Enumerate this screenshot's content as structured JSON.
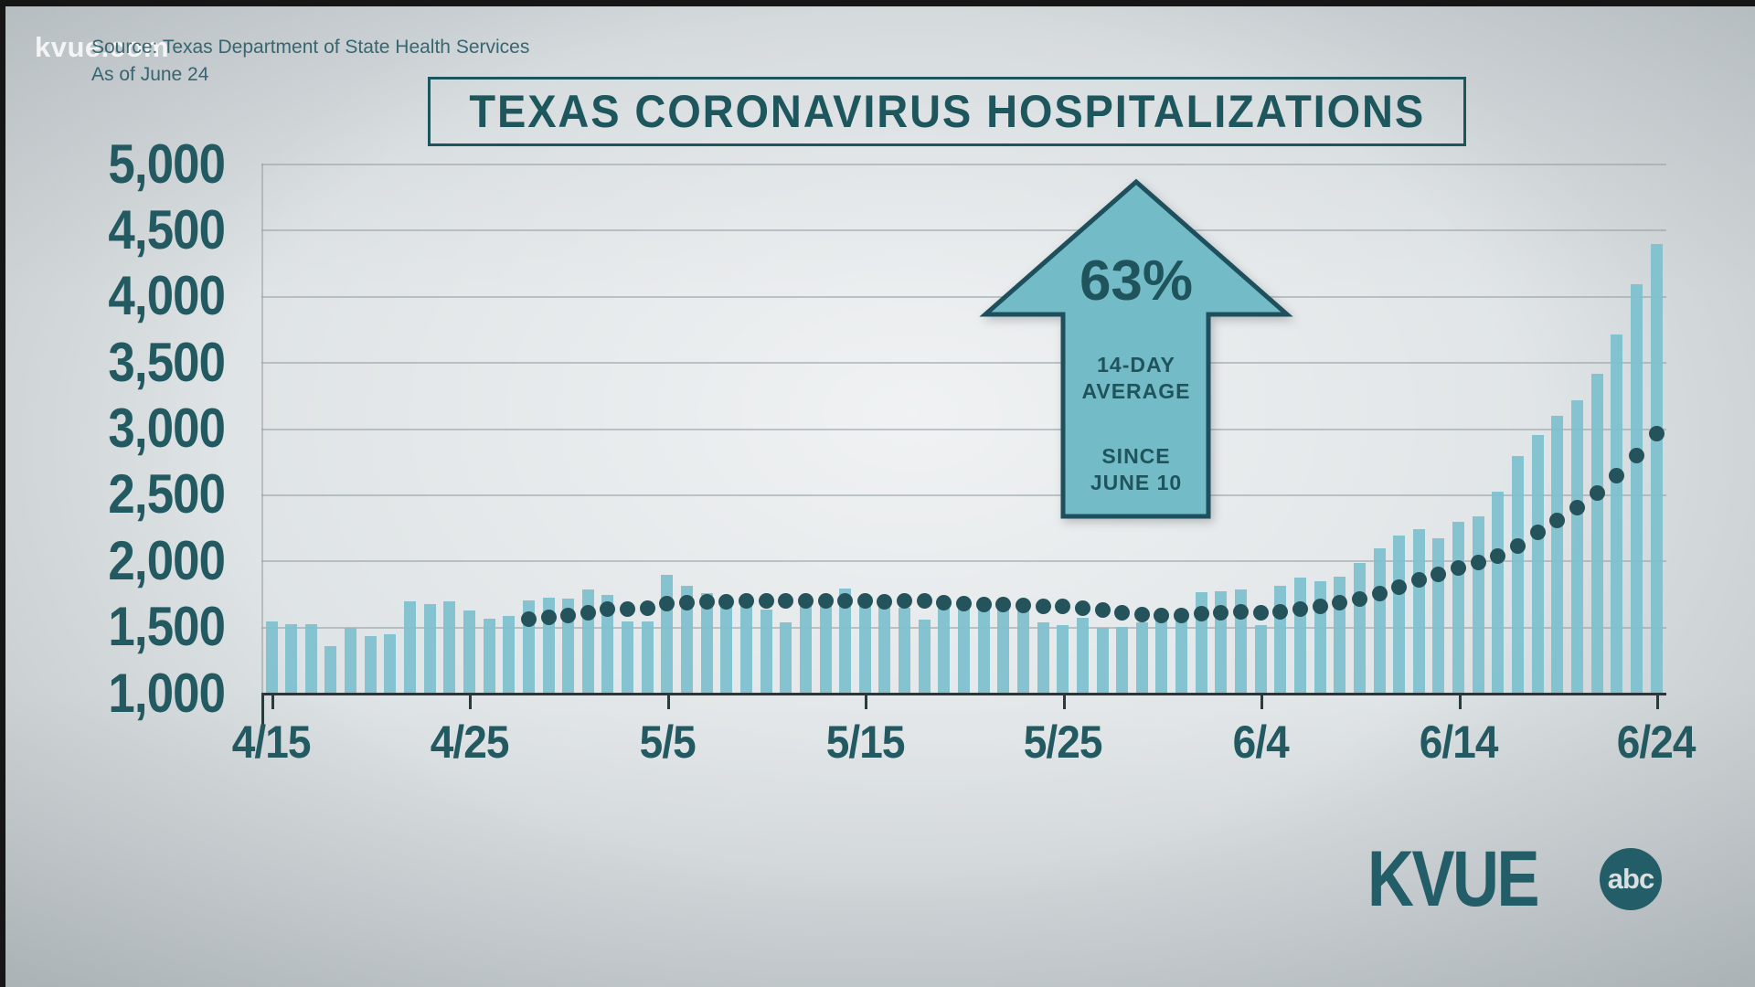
{
  "watermark": "kvue.com",
  "source": {
    "line1": "Source: Texas Department of State Health Services",
    "line2": "As of June 24"
  },
  "title": "TEXAS CORONAVIRUS HOSPITALIZATIONS",
  "annotation": {
    "arrow_icon": "up-arrow",
    "percent": "63%",
    "line1": "14-DAY",
    "line2": "AVERAGE",
    "line3": "SINCE",
    "line4": "JUNE 10"
  },
  "logo": {
    "station": "KVUE",
    "network": "abc"
  },
  "colors": {
    "bar": "#7ec1cd",
    "arrow_fill": "#74bbc8",
    "arrow_stroke": "#1d4f5c",
    "teal_text": "#235a61",
    "dot": "#24535b",
    "grid": "#949ea2",
    "axis": "#2c3538",
    "background": "#dde2e4"
  },
  "chart_data": {
    "type": "bar",
    "title": "TEXAS CORONAVIRUS HOSPITALIZATIONS",
    "xlabel": "",
    "ylabel": "",
    "ylim": [
      1000,
      5000
    ],
    "grid": true,
    "y_tick_labels": [
      "5,000",
      "4,500",
      "4,000",
      "3,500",
      "3,000",
      "2,500",
      "2,000",
      "1,500",
      "1,000"
    ],
    "x_tick_labels": [
      "4/15",
      "4/25",
      "5/5",
      "5/15",
      "5/25",
      "6/4",
      "6/14",
      "6/24"
    ],
    "x_tick_indices": [
      0,
      10,
      20,
      30,
      40,
      50,
      60,
      70
    ],
    "categories": [
      "4/15",
      "4/16",
      "4/17",
      "4/18",
      "4/19",
      "4/20",
      "4/21",
      "4/22",
      "4/23",
      "4/24",
      "4/25",
      "4/26",
      "4/27",
      "4/28",
      "4/29",
      "4/30",
      "5/1",
      "5/2",
      "5/3",
      "5/4",
      "5/5",
      "5/6",
      "5/7",
      "5/8",
      "5/9",
      "5/10",
      "5/11",
      "5/12",
      "5/13",
      "5/14",
      "5/15",
      "5/16",
      "5/17",
      "5/18",
      "5/19",
      "5/20",
      "5/21",
      "5/22",
      "5/23",
      "5/24",
      "5/25",
      "5/26",
      "5/27",
      "5/28",
      "5/29",
      "5/30",
      "5/31",
      "6/1",
      "6/2",
      "6/3",
      "6/4",
      "6/5",
      "6/6",
      "6/7",
      "6/8",
      "6/9",
      "6/10",
      "6/11",
      "6/12",
      "6/13",
      "6/14",
      "6/15",
      "6/16",
      "6/17",
      "6/18",
      "6/19",
      "6/20",
      "6/21",
      "6/22",
      "6/23",
      "6/24"
    ],
    "series": [
      {
        "name": "daily-hospitalizations",
        "type": "bar",
        "values": [
          1540,
          1520,
          1520,
          1350,
          1490,
          1430,
          1440,
          1690,
          1670,
          1690,
          1620,
          1560,
          1580,
          1700,
          1720,
          1710,
          1780,
          1740,
          1540,
          1540,
          1890,
          1810,
          1750,
          1700,
          1660,
          1630,
          1530,
          1720,
          1680,
          1790,
          1720,
          1680,
          1640,
          1550,
          1680,
          1690,
          1660,
          1660,
          1620,
          1530,
          1510,
          1570,
          1490,
          1500,
          1530,
          1570,
          1630,
          1760,
          1770,
          1780,
          1510,
          1810,
          1870,
          1840,
          1880,
          1980,
          2090,
          2190,
          2240,
          2170,
          2290,
          2330,
          2520,
          2790,
          2950,
          3090,
          3210,
          3410,
          3710,
          4090,
          4390
        ]
      },
      {
        "name": "14-day-average",
        "type": "dotted-line",
        "values": [
          null,
          null,
          null,
          null,
          null,
          null,
          null,
          null,
          null,
          null,
          null,
          null,
          null,
          1557,
          1570,
          1584,
          1602,
          1630,
          1634,
          1641,
          1674,
          1682,
          1688,
          1689,
          1691,
          1696,
          1693,
          1694,
          1691,
          1697,
          1693,
          1689,
          1696,
          1696,
          1681,
          1673,
          1666,
          1664,
          1661,
          1654,
          1652,
          1641,
          1628,
          1607,
          1594,
          1586,
          1585,
          1600,
          1606,
          1613,
          1602,
          1613,
          1631,
          1653,
          1679,
          1709,
          1751,
          1801,
          1851,
          1894,
          1941,
          1982,
          2036,
          2108,
          2211,
          2302,
          2398,
          2510,
          2641,
          2791,
          2956
        ]
      }
    ]
  }
}
